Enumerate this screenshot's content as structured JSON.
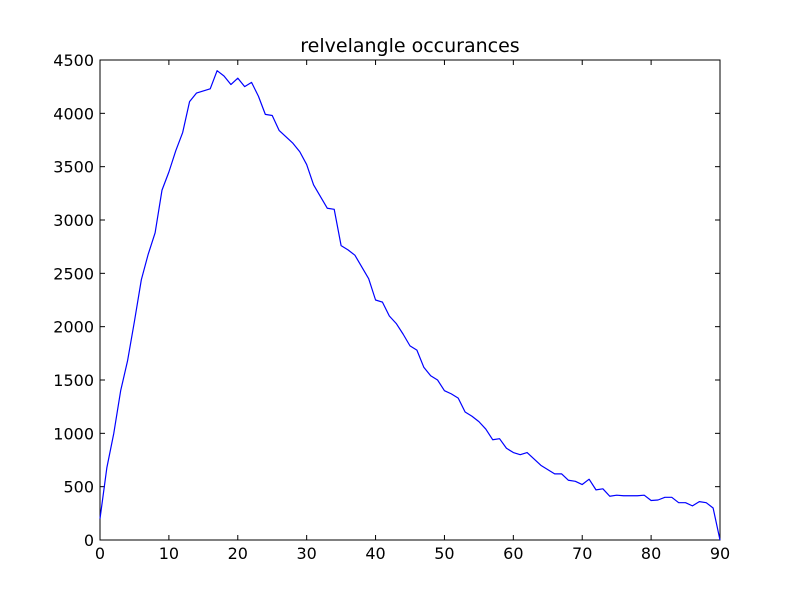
{
  "chart_data": {
    "type": "line",
    "title": "relvelangle occurances",
    "xlabel": "",
    "ylabel": "",
    "xlim": [
      0,
      90
    ],
    "ylim": [
      0,
      4500
    ],
    "xticks": [
      0,
      10,
      20,
      30,
      40,
      50,
      60,
      70,
      80,
      90
    ],
    "yticks": [
      0,
      500,
      1000,
      1500,
      2000,
      2500,
      3000,
      3500,
      4000,
      4500
    ],
    "grid": false,
    "legend": "none",
    "line_color": "#0000ff",
    "series": [
      {
        "x": [
          0,
          1,
          2,
          3,
          4,
          5,
          6,
          7,
          8,
          9,
          10,
          11,
          12,
          13,
          14,
          15,
          16,
          17,
          18,
          19,
          20,
          21,
          22,
          23,
          24,
          25,
          26,
          27,
          28,
          29,
          30,
          31,
          32,
          33,
          34,
          35,
          36,
          37,
          38,
          39,
          40,
          41,
          42,
          43,
          44,
          45,
          46,
          47,
          48,
          49,
          50,
          51,
          52,
          53,
          54,
          55,
          56,
          57,
          58,
          59,
          60,
          61,
          62,
          63,
          64,
          65,
          66,
          67,
          68,
          69,
          70,
          71,
          72,
          73,
          74,
          75,
          76,
          77,
          78,
          79,
          80,
          81,
          82,
          83,
          84,
          85,
          86,
          87,
          88,
          89,
          90
        ],
        "values": [
          200,
          680,
          1000,
          1400,
          1680,
          2050,
          2440,
          2680,
          2880,
          3280,
          3450,
          3650,
          3820,
          4110,
          4190,
          4210,
          4230,
          4400,
          4350,
          4270,
          4330,
          4250,
          4290,
          4160,
          3990,
          3980,
          3840,
          3780,
          3720,
          3640,
          3520,
          3330,
          3220,
          3110,
          3100,
          2760,
          2720,
          2670,
          2560,
          2450,
          2250,
          2230,
          2100,
          2030,
          1930,
          1820,
          1780,
          1620,
          1540,
          1500,
          1400,
          1370,
          1330,
          1200,
          1160,
          1110,
          1040,
          940,
          950,
          860,
          820,
          800,
          820,
          760,
          700,
          660,
          620,
          620,
          560,
          550,
          520,
          570,
          470,
          480,
          410,
          420,
          415,
          415,
          415,
          420,
          370,
          375,
          400,
          400,
          350,
          350,
          320,
          360,
          350,
          300,
          0
        ]
      }
    ]
  }
}
